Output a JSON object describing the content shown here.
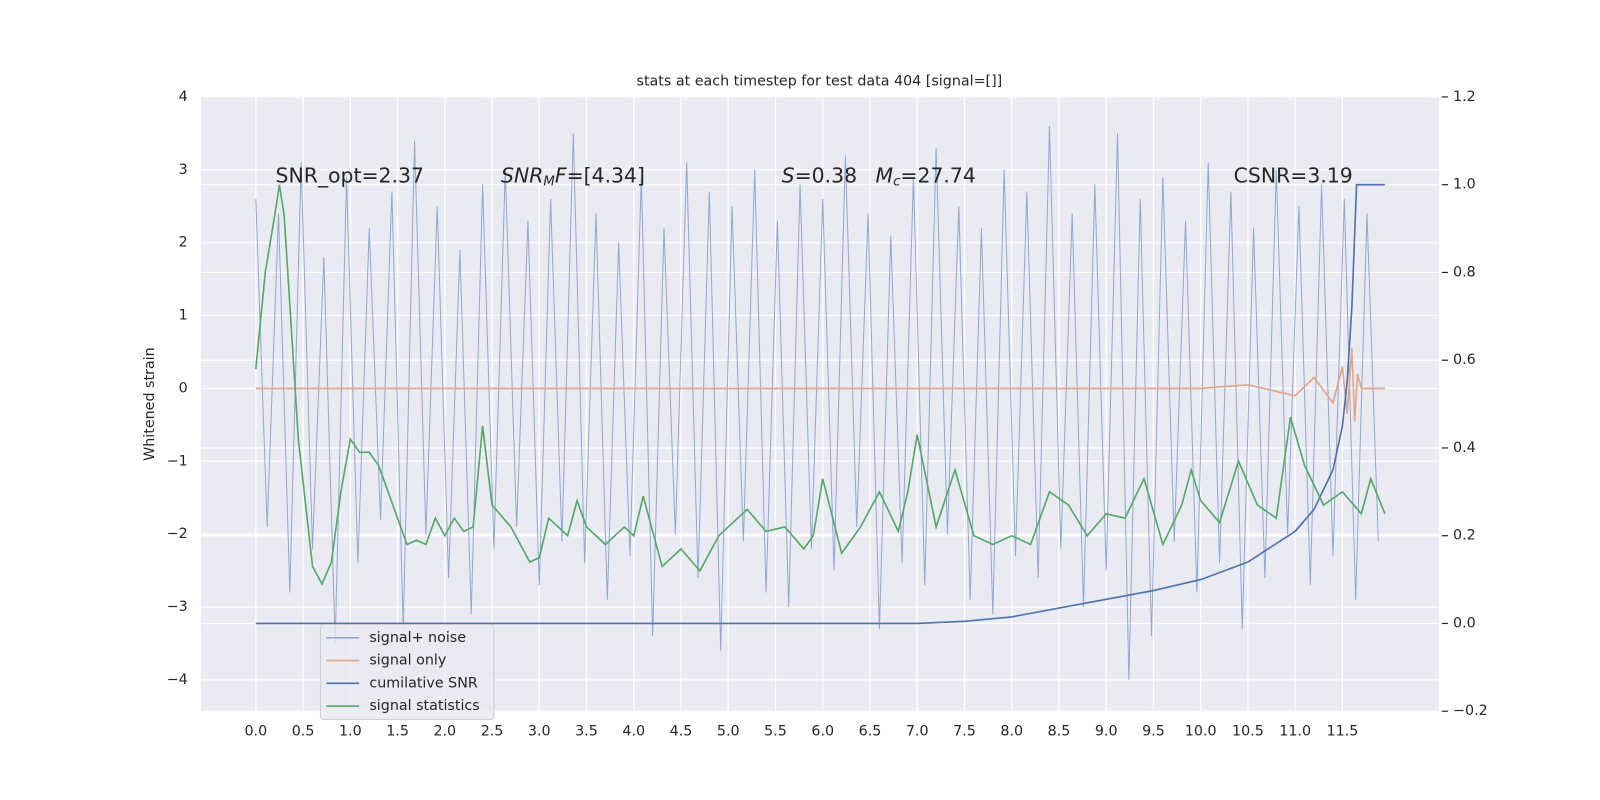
{
  "chart_data": {
    "type": "line",
    "title": "stats at each timestep for test data 404 [signal=[]]",
    "y_label": "Whitened strain",
    "xlim": [
      -0.58,
      12.52
    ],
    "ylim": [
      -4.43,
      4.0
    ],
    "y2lim": [
      -0.2,
      1.2
    ],
    "xticks": [
      {
        "value": 0,
        "label": "0.0"
      },
      0.5,
      {
        "value": 1,
        "label": "1.0"
      },
      1.5,
      {
        "value": 2,
        "label": "2.0"
      },
      2.5,
      {
        "value": 3,
        "label": "3.0"
      },
      3.5,
      {
        "value": 4,
        "label": "4.0"
      },
      4.5,
      {
        "value": 5,
        "label": "5.0"
      },
      5.5,
      {
        "value": 6,
        "label": "6.0"
      },
      6.5,
      {
        "value": 7,
        "label": "7.0"
      },
      7.5,
      {
        "value": 8,
        "label": "8.0"
      },
      8.5,
      {
        "value": 9,
        "label": "9.0"
      },
      9.5,
      {
        "value": 10,
        "label": "10.0"
      },
      10.5,
      {
        "value": 11,
        "label": "11.0"
      },
      11.5
    ],
    "yticks": [
      {
        "value": -4,
        "label": "−4"
      },
      {
        "value": -3,
        "label": "−3"
      },
      {
        "value": -2,
        "label": "−2"
      },
      {
        "value": -1,
        "label": "−1"
      },
      0,
      1,
      2,
      3,
      4
    ],
    "y2ticks": [
      {
        "value": -0.2,
        "label": "−0.2"
      },
      {
        "value": 0,
        "label": "0.0"
      },
      0.2,
      0.4,
      0.6,
      0.8,
      {
        "value": 1,
        "label": "1.0"
      },
      1.2
    ],
    "grid": true,
    "legend": "lower left",
    "annotations": [
      [
        {
          "text": "SNR_opt=2.37"
        }
      ],
      [
        {
          "text": "SNR",
          "italic": true
        },
        {
          "text": "M",
          "italic": true,
          "sub": true
        },
        {
          "text": "F",
          "italic": true
        },
        {
          "text": "=[4.34]"
        }
      ],
      [
        {
          "text": "S",
          "italic": true
        },
        {
          "text": "=0.38"
        }
      ],
      [
        {
          "text": "M",
          "italic": true
        },
        {
          "text": "c",
          "italic": true,
          "sub": true
        },
        {
          "text": "=27.74"
        }
      ],
      [
        {
          "text": "CSNR=3.19"
        }
      ]
    ],
    "series": [
      {
        "name": "signal+ noise",
        "color": "#92a8d1",
        "x": [
          0,
          0.12,
          0.24,
          0.36,
          0.48,
          0.6,
          0.72,
          0.84,
          0.96,
          1.08,
          1.2,
          1.32,
          1.44,
          1.56,
          1.68,
          1.8,
          1.92,
          2.04,
          2.16,
          2.28,
          2.4,
          2.52,
          2.64,
          2.76,
          2.88,
          3,
          3.12,
          3.24,
          3.36,
          3.48,
          3.6,
          3.72,
          3.84,
          3.96,
          4.08,
          4.2,
          4.32,
          4.44,
          4.56,
          4.68,
          4.8,
          4.92,
          5.04,
          5.16,
          5.28,
          5.4,
          5.52,
          5.64,
          5.76,
          5.88,
          6,
          6.12,
          6.24,
          6.36,
          6.48,
          6.6,
          6.72,
          6.84,
          6.96,
          7.08,
          7.2,
          7.32,
          7.44,
          7.56,
          7.68,
          7.8,
          7.92,
          8.04,
          8.16,
          8.28,
          8.4,
          8.52,
          8.64,
          8.76,
          8.88,
          9,
          9.12,
          9.24,
          9.36,
          9.48,
          9.6,
          9.72,
          9.84,
          9.96,
          10.08,
          10.2,
          10.32,
          10.44,
          10.56,
          10.68,
          10.8,
          10.92,
          11.04,
          11.16,
          11.28,
          11.4,
          11.52,
          11.64,
          11.76,
          11.88
        ],
        "values": [
          2.6,
          -1.9,
          2.4,
          -2.8,
          3.1,
          -2.2,
          1.8,
          -3.5,
          2.9,
          -2.4,
          2.2,
          -1.8,
          2.7,
          -3.3,
          3.4,
          -2.0,
          2.5,
          -2.6,
          1.9,
          -3.1,
          2.8,
          -2.2,
          3.0,
          -1.9,
          2.3,
          -2.7,
          2.6,
          -2.1,
          3.5,
          -2.4,
          2.4,
          -2.9,
          2.0,
          -2.3,
          2.9,
          -3.4,
          2.2,
          -2.0,
          3.1,
          -2.6,
          2.7,
          -3.6,
          2.5,
          -2.1,
          3.0,
          -2.8,
          2.3,
          -3.0,
          2.8,
          -2.2,
          2.6,
          -2.5,
          3.2,
          -1.9,
          2.4,
          -3.3,
          2.1,
          -2.4,
          2.9,
          -2.7,
          3.3,
          -2.0,
          2.5,
          -2.9,
          2.2,
          -3.1,
          3.0,
          -2.3,
          2.7,
          -2.6,
          3.6,
          -2.2,
          2.4,
          -3.0,
          2.8,
          -2.5,
          3.5,
          -4.0,
          2.6,
          -3.4,
          2.9,
          -2.1,
          2.3,
          -2.8,
          3.1,
          -2.4,
          2.7,
          -3.3,
          2.2,
          -2.6,
          3.0,
          -2.0,
          2.5,
          -2.7,
          2.8,
          -2.3,
          2.6,
          -2.9,
          2.4,
          -2.1
        ]
      },
      {
        "name": "signal only",
        "color": "#e0a68a",
        "x": [
          0,
          10,
          10.5,
          11,
          11.2,
          11.4,
          11.5,
          11.55,
          11.6,
          11.63,
          11.66,
          11.7,
          11.95
        ],
        "values": [
          0,
          0,
          0.05,
          -0.1,
          0.15,
          -0.2,
          0.3,
          -0.35,
          0.55,
          -0.45,
          0.2,
          0,
          0
        ]
      },
      {
        "name": "cumilative SNR",
        "color": "#4c72b0",
        "axis": "y2",
        "x": [
          0,
          7,
          7.5,
          8,
          8.5,
          9,
          9.5,
          10,
          10.5,
          11,
          11.2,
          11.4,
          11.5,
          11.55,
          11.6,
          11.65,
          11.95
        ],
        "values": [
          0,
          0,
          0.005,
          0.015,
          0.035,
          0.055,
          0.075,
          0.1,
          0.14,
          0.21,
          0.26,
          0.35,
          0.45,
          0.55,
          0.72,
          1.0,
          1.0
        ]
      },
      {
        "name": "signal statistics",
        "color": "#55a868",
        "axis": "y2",
        "x": [
          0,
          0.1,
          0.2,
          0.25,
          0.3,
          0.45,
          0.6,
          0.7,
          0.8,
          0.9,
          1.0,
          1.1,
          1.2,
          1.3,
          1.4,
          1.5,
          1.6,
          1.7,
          1.8,
          1.9,
          2.0,
          2.1,
          2.2,
          2.3,
          2.4,
          2.5,
          2.7,
          2.9,
          3.0,
          3.1,
          3.3,
          3.4,
          3.5,
          3.7,
          3.9,
          4.0,
          4.1,
          4.3,
          4.5,
          4.7,
          4.9,
          5.0,
          5.2,
          5.4,
          5.6,
          5.8,
          5.9,
          6.0,
          6.2,
          6.4,
          6.6,
          6.8,
          6.9,
          7.0,
          7.2,
          7.4,
          7.6,
          7.8,
          8.0,
          8.2,
          8.4,
          8.6,
          8.8,
          9.0,
          9.2,
          9.4,
          9.6,
          9.8,
          9.9,
          10.0,
          10.2,
          10.4,
          10.6,
          10.8,
          10.95,
          11.1,
          11.3,
          11.5,
          11.7,
          11.8,
          11.95
        ],
        "values": [
          0.58,
          0.8,
          0.93,
          1.0,
          0.93,
          0.42,
          0.13,
          0.09,
          0.14,
          0.3,
          0.42,
          0.39,
          0.39,
          0.36,
          0.3,
          0.24,
          0.18,
          0.19,
          0.18,
          0.24,
          0.2,
          0.24,
          0.21,
          0.22,
          0.45,
          0.27,
          0.22,
          0.14,
          0.15,
          0.24,
          0.2,
          0.28,
          0.22,
          0.18,
          0.22,
          0.2,
          0.29,
          0.13,
          0.17,
          0.12,
          0.2,
          0.22,
          0.26,
          0.21,
          0.22,
          0.17,
          0.2,
          0.33,
          0.16,
          0.22,
          0.3,
          0.21,
          0.3,
          0.43,
          0.22,
          0.35,
          0.2,
          0.18,
          0.2,
          0.18,
          0.3,
          0.27,
          0.2,
          0.25,
          0.24,
          0.33,
          0.18,
          0.27,
          0.35,
          0.28,
          0.23,
          0.37,
          0.27,
          0.24,
          0.47,
          0.36,
          0.27,
          0.3,
          0.25,
          0.33,
          0.25
        ]
      }
    ]
  }
}
